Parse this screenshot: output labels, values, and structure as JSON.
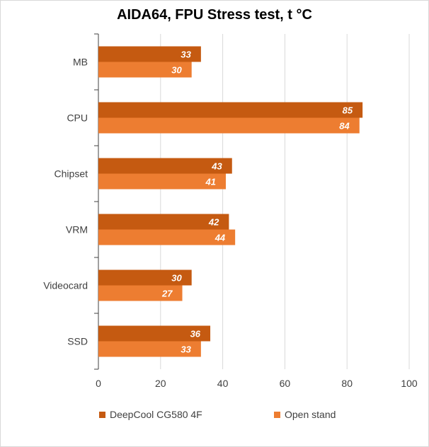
{
  "chart_data": {
    "type": "bar",
    "orientation": "horizontal",
    "title": "AIDA64, FPU Stress test, t °C",
    "categories": [
      "MB",
      "CPU",
      "Chipset",
      "VRM",
      "Videocard",
      "SSD"
    ],
    "series": [
      {
        "name": "DeepCool CG580 4F",
        "color": "#c55a11",
        "values": [
          33,
          85,
          43,
          42,
          30,
          36
        ]
      },
      {
        "name": "Open stand",
        "color": "#ed7d31",
        "values": [
          30,
          84,
          41,
          44,
          27,
          33
        ]
      }
    ],
    "xlim": [
      0,
      100
    ],
    "xticks": [
      0,
      20,
      40,
      60,
      80,
      100
    ],
    "grid": true,
    "legend_position": "bottom",
    "xlabel": "",
    "ylabel": ""
  }
}
